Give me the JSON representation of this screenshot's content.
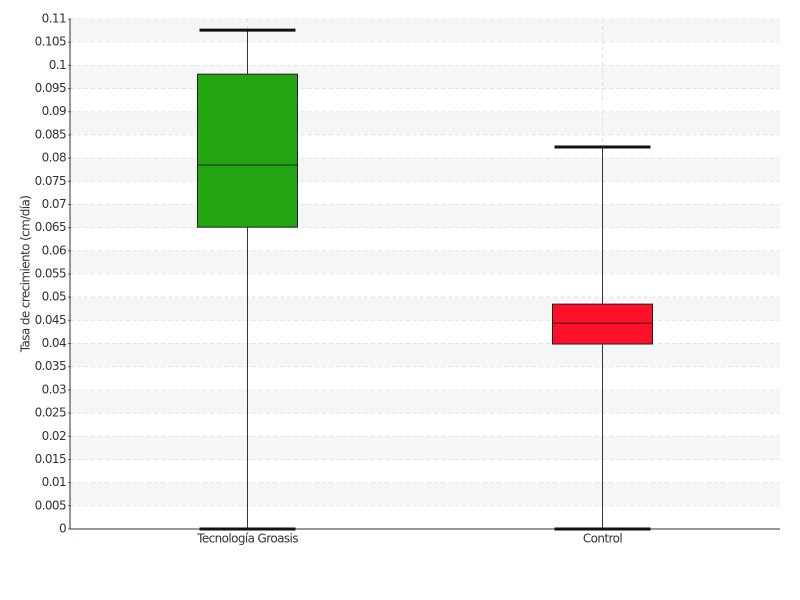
{
  "chart_data": {
    "type": "box",
    "y_label": "Tasa de crecimiento (cm/día)",
    "categories": [
      "Tecnología Groasis",
      "Control"
    ],
    "boxes": [
      {
        "min": 0,
        "q1": 0.0651,
        "median": 0.0785,
        "q3": 0.0981,
        "max": 0.1076,
        "color": "#22a511"
      },
      {
        "min": 0,
        "q1": 0.0399,
        "median": 0.0444,
        "q3": 0.0485,
        "max": 0.0824,
        "color": "#ff1028"
      }
    ],
    "ylim": [
      0,
      0.11
    ],
    "yticks": [
      0,
      0.005,
      0.01,
      0.015,
      0.02,
      0.025,
      0.03,
      0.035,
      0.04,
      0.045,
      0.05,
      0.055,
      0.06,
      0.065,
      0.07,
      0.075,
      0.08,
      0.085,
      0.09,
      0.095,
      0.1,
      0.105,
      0.11
    ],
    "grid": true
  }
}
